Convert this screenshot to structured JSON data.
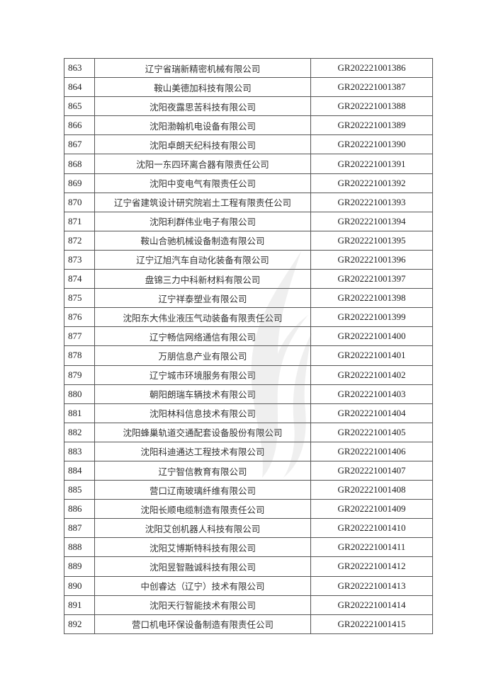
{
  "watermark": {
    "icon": "flame-logo",
    "color": "#b0b0b0"
  },
  "rows": [
    {
      "no": "863",
      "name": "辽宁省瑞新精密机械有限公司",
      "code": "GR202221001386"
    },
    {
      "no": "864",
      "name": "鞍山美德加科技有限公司",
      "code": "GR202221001387"
    },
    {
      "no": "865",
      "name": "沈阳夜露思苦科技有限公司",
      "code": "GR202221001388"
    },
    {
      "no": "866",
      "name": "沈阳渤翰机电设备有限公司",
      "code": "GR202221001389"
    },
    {
      "no": "867",
      "name": "沈阳卓朗天纪科技有限公司",
      "code": "GR202221001390"
    },
    {
      "no": "868",
      "name": "沈阳一东四环离合器有限责任公司",
      "code": "GR202221001391"
    },
    {
      "no": "869",
      "name": "沈阳中变电气有限责任公司",
      "code": "GR202221001392"
    },
    {
      "no": "870",
      "name": "辽宁省建筑设计研究院岩土工程有限责任公司",
      "code": "GR202221001393"
    },
    {
      "no": "871",
      "name": "沈阳利群伟业电子有限公司",
      "code": "GR202221001394"
    },
    {
      "no": "872",
      "name": "鞍山合驰机械设备制造有限公司",
      "code": "GR202221001395"
    },
    {
      "no": "873",
      "name": "辽宁辽旭汽车自动化装备有限公司",
      "code": "GR202221001396"
    },
    {
      "no": "874",
      "name": "盘锦三力中科新材料有限公司",
      "code": "GR202221001397"
    },
    {
      "no": "875",
      "name": "辽宁祥泰塑业有限公司",
      "code": "GR202221001398"
    },
    {
      "no": "876",
      "name": "沈阳东大伟业液压气动装备有限责任公司",
      "code": "GR202221001399"
    },
    {
      "no": "877",
      "name": "辽宁畅信网络通信有限公司",
      "code": "GR202221001400"
    },
    {
      "no": "878",
      "name": "万朋信息产业有限公司",
      "code": "GR202221001401"
    },
    {
      "no": "879",
      "name": "辽宁城市环境服务有限公司",
      "code": "GR202221001402"
    },
    {
      "no": "880",
      "name": "朝阳朗瑞车辆技术有限公司",
      "code": "GR202221001403"
    },
    {
      "no": "881",
      "name": "沈阳林科信息技术有限公司",
      "code": "GR202221001404"
    },
    {
      "no": "882",
      "name": "沈阳蜂巢轨道交通配套设备股份有限公司",
      "code": "GR202221001405"
    },
    {
      "no": "883",
      "name": "沈阳科迪通达工程技术有限公司",
      "code": "GR202221001406"
    },
    {
      "no": "884",
      "name": "辽宁智信教育有限公司",
      "code": "GR202221001407"
    },
    {
      "no": "885",
      "name": "营口辽南玻璃纤维有限公司",
      "code": "GR202221001408"
    },
    {
      "no": "886",
      "name": "沈阳长顺电缆制造有限责任公司",
      "code": "GR202221001409"
    },
    {
      "no": "887",
      "name": "沈阳艾创机器人科技有限公司",
      "code": "GR202221001410"
    },
    {
      "no": "888",
      "name": "沈阳艾博斯特科技有限公司",
      "code": "GR202221001411"
    },
    {
      "no": "889",
      "name": "沈阳昱智融诚科技有限公司",
      "code": "GR202221001412"
    },
    {
      "no": "890",
      "name": "中创睿达（辽宁）技术有限公司",
      "code": "GR202221001413"
    },
    {
      "no": "891",
      "name": "沈阳天行智能技术有限公司",
      "code": "GR202221001414"
    },
    {
      "no": "892",
      "name": "营口机电环保设备制造有限责任公司",
      "code": "GR202221001415"
    }
  ]
}
